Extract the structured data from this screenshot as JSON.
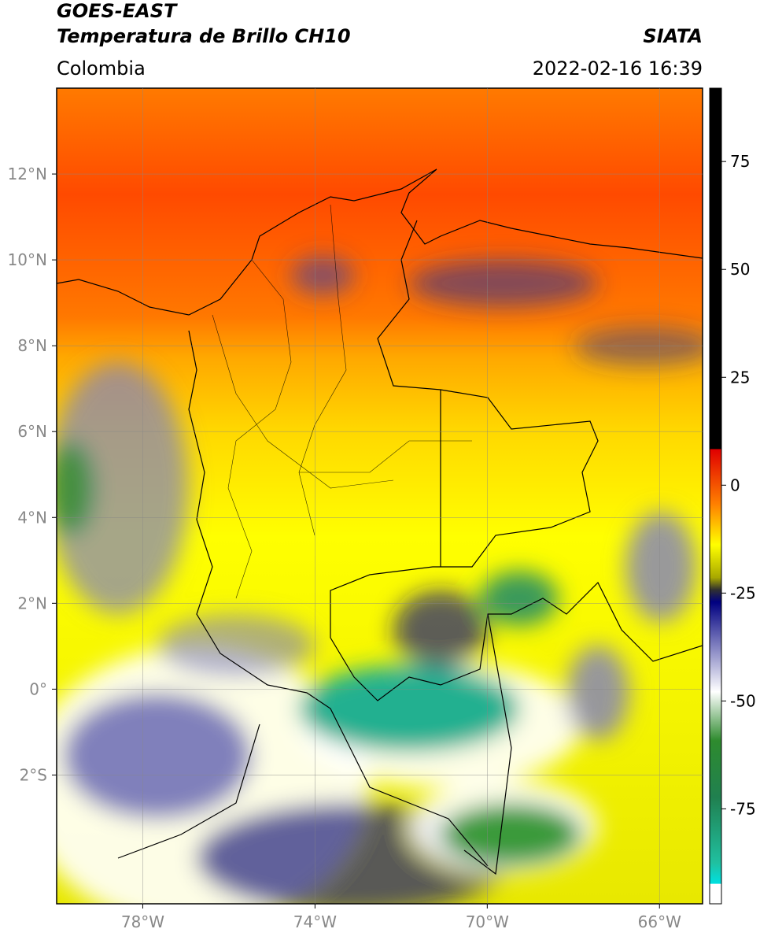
{
  "header": {
    "title": "GOES-EAST",
    "subtitle": "Temperatura de Brillo CH10",
    "source": "SIATA",
    "region": "Colombia",
    "datetime": "2022-02-16 16:39"
  },
  "map": {
    "xlim": [
      -80,
      -65
    ],
    "ylim": [
      -5,
      14
    ],
    "xticks": [
      {
        "value": -78,
        "label": "78°W"
      },
      {
        "value": -74,
        "label": "74°W"
      },
      {
        "value": -70,
        "label": "70°W"
      },
      {
        "value": -66,
        "label": "66°W"
      }
    ],
    "yticks": [
      {
        "value": 12,
        "label": "12°N"
      },
      {
        "value": 10,
        "label": "10°N"
      },
      {
        "value": 8,
        "label": "8°N"
      },
      {
        "value": 6,
        "label": "6°N"
      },
      {
        "value": 4,
        "label": "4°N"
      },
      {
        "value": 2,
        "label": "2°N"
      },
      {
        "value": 0,
        "label": "0°"
      },
      {
        "value": -2,
        "label": "2°S"
      }
    ],
    "grid": true
  },
  "colorbar": {
    "lim": [
      -97,
      92
    ],
    "ticks": [
      75,
      50,
      25,
      0,
      -25,
      -50,
      -75
    ]
  }
}
